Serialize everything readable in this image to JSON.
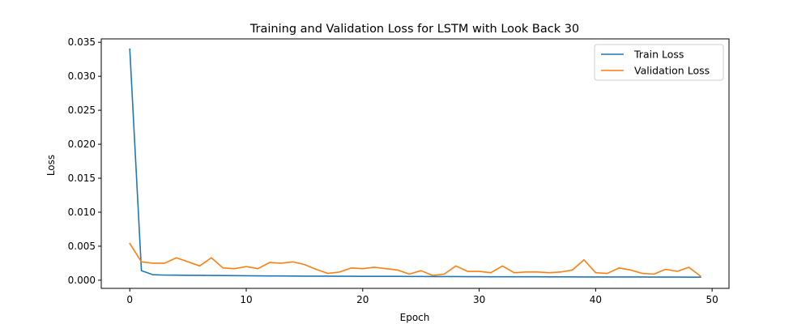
{
  "chart_data": {
    "type": "line",
    "title": "Training and Validation Loss for LSTM with Look Back 30",
    "xlabel": "Epoch",
    "ylabel": "Loss",
    "xlim": [
      -2.45,
      51.45
    ],
    "ylim": [
      -0.0012,
      0.0355
    ],
    "xticks": [
      0,
      10,
      20,
      30,
      40,
      50
    ],
    "yticks": [
      0.0,
      0.005,
      0.01,
      0.015,
      0.02,
      0.025,
      0.03,
      0.035
    ],
    "ytick_labels": [
      "0.000",
      "0.005",
      "0.010",
      "0.015",
      "0.020",
      "0.025",
      "0.030",
      "0.035"
    ],
    "xtick_labels": [
      "0",
      "10",
      "20",
      "30",
      "40",
      "50"
    ],
    "grid": false,
    "legend_position": "top-right",
    "x": [
      0,
      1,
      2,
      3,
      4,
      5,
      6,
      7,
      8,
      9,
      10,
      11,
      12,
      13,
      14,
      15,
      16,
      17,
      18,
      19,
      20,
      21,
      22,
      23,
      24,
      25,
      26,
      27,
      28,
      29,
      30,
      31,
      32,
      33,
      34,
      35,
      36,
      37,
      38,
      39,
      40,
      41,
      42,
      43,
      44,
      45,
      46,
      47,
      48,
      49
    ],
    "series": [
      {
        "name": "Train Loss",
        "color": "#1f77b4",
        "values": [
          0.034,
          0.0014,
          0.0008,
          0.00075,
          0.00074,
          0.00072,
          0.00071,
          0.0007,
          0.00068,
          0.00067,
          0.00065,
          0.00064,
          0.00063,
          0.00062,
          0.00061,
          0.0006,
          0.0006,
          0.00059,
          0.00058,
          0.00058,
          0.00057,
          0.00057,
          0.00056,
          0.00056,
          0.00055,
          0.00055,
          0.00054,
          0.00053,
          0.00053,
          0.00052,
          0.00052,
          0.00051,
          0.00051,
          0.0005,
          0.0005,
          0.0005,
          0.00049,
          0.00049,
          0.00049,
          0.00048,
          0.00048,
          0.00048,
          0.00047,
          0.00047,
          0.00047,
          0.00046,
          0.00046,
          0.00046,
          0.00045,
          0.00045
        ]
      },
      {
        "name": "Validation Loss",
        "color": "#ff7f0e",
        "values": [
          0.0054,
          0.0027,
          0.0025,
          0.0025,
          0.0033,
          0.0027,
          0.0021,
          0.0033,
          0.0018,
          0.0017,
          0.002,
          0.0017,
          0.0026,
          0.0025,
          0.0027,
          0.0023,
          0.0016,
          0.001,
          0.0012,
          0.0018,
          0.0017,
          0.0019,
          0.0017,
          0.0015,
          0.0009,
          0.0014,
          0.0007,
          0.0009,
          0.0021,
          0.0013,
          0.0013,
          0.0011,
          0.0021,
          0.0011,
          0.0012,
          0.0012,
          0.0011,
          0.0012,
          0.0015,
          0.003,
          0.0011,
          0.001,
          0.0018,
          0.0015,
          0.001,
          0.0009,
          0.0016,
          0.0013,
          0.0019,
          0.0006
        ]
      }
    ]
  }
}
